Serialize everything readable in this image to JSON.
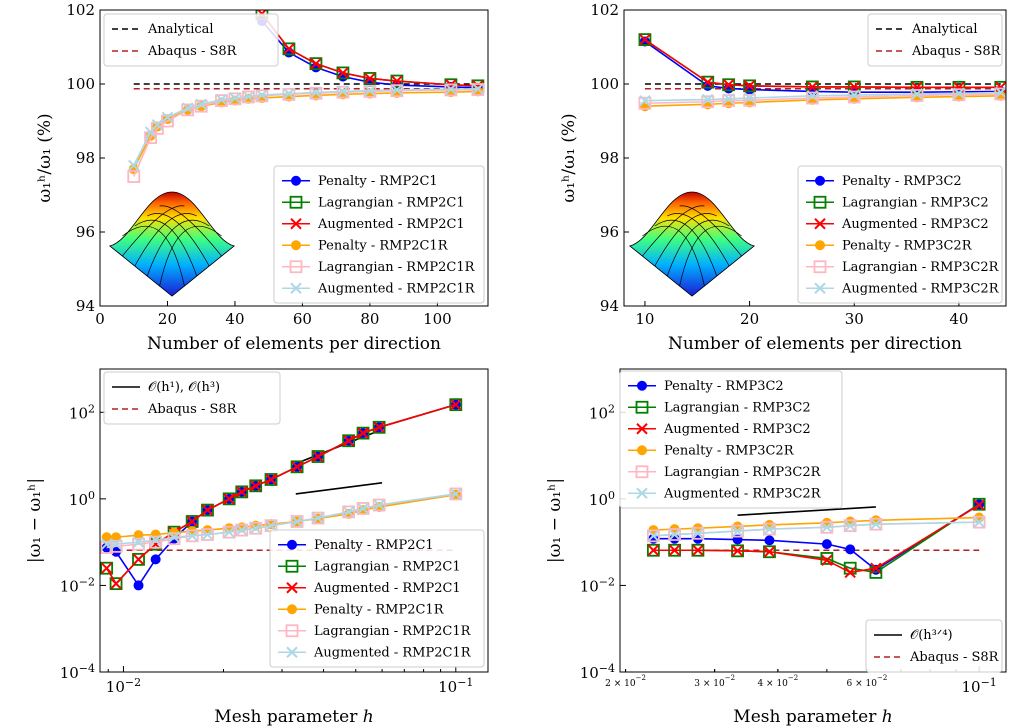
{
  "chart_data": [
    {
      "type": "line",
      "xlabel": "Number of elements per direction",
      "ylabel": "ω₁ʰ/ω₁ (%)",
      "xlim": [
        0,
        115
      ],
      "ylim": [
        94,
        102
      ],
      "xticks": [
        "0",
        "20",
        "40",
        "60",
        "80",
        "100"
      ],
      "yticks": [
        "94",
        "96",
        "98",
        "100",
        "102"
      ],
      "reference_lines": [
        {
          "name": "Analytical",
          "y": 100.0,
          "x_range": [
            10,
            112
          ],
          "color": "#000000"
        },
        {
          "name": "Abaqus - S8R",
          "y": 99.87,
          "x_range": [
            10,
            112
          ],
          "color": "#b22222"
        }
      ],
      "legend_top": [
        "Analytical",
        "Abaqus - S8R"
      ],
      "series": [
        {
          "name": "Penalty - RMP2C1",
          "color": "#0000ff",
          "marker": "circle",
          "x": [
            48,
            56,
            64,
            72,
            80,
            88,
            104,
            112
          ],
          "y": [
            101.7,
            100.85,
            100.45,
            100.2,
            100.05,
            99.97,
            99.92,
            99.9
          ]
        },
        {
          "name": "Lagrangian - RMP2C1",
          "color": "#008000",
          "marker": "square",
          "x": [
            48,
            56,
            64,
            72,
            80,
            88,
            104,
            112
          ],
          "y": [
            101.9,
            100.95,
            100.55,
            100.3,
            100.15,
            100.08,
            99.98,
            99.95
          ]
        },
        {
          "name": "Augmented - RMP2C1",
          "color": "#ff0000",
          "marker": "x",
          "x": [
            48,
            56,
            64,
            72,
            80,
            88,
            104,
            112
          ],
          "y": [
            101.9,
            100.95,
            100.55,
            100.3,
            100.15,
            100.08,
            99.98,
            99.95
          ]
        },
        {
          "name": "Penalty - RMP2C1R",
          "color": "#ffa500",
          "marker": "circle",
          "x": [
            10,
            15,
            17,
            20,
            26,
            30,
            36,
            40,
            44,
            48,
            56,
            64,
            72,
            80,
            88,
            104,
            112
          ],
          "y": [
            97.7,
            98.6,
            98.85,
            99.05,
            99.3,
            99.4,
            99.5,
            99.55,
            99.6,
            99.62,
            99.66,
            99.69,
            99.72,
            99.74,
            99.76,
            99.78,
            99.8
          ]
        },
        {
          "name": "Lagrangian - RMP2C1R",
          "color": "#ffb6c1",
          "marker": "square",
          "x": [
            10,
            15,
            17,
            20,
            26,
            30,
            36,
            40,
            44,
            48,
            56,
            64,
            72,
            80,
            88,
            104,
            112
          ],
          "y": [
            97.5,
            98.55,
            98.8,
            99.0,
            99.3,
            99.4,
            99.55,
            99.6,
            99.65,
            99.68,
            99.72,
            99.75,
            99.78,
            99.8,
            99.82,
            99.84,
            99.85
          ]
        },
        {
          "name": "Augmented - RMP2C1R",
          "color": "#add8e6",
          "marker": "x",
          "x": [
            10,
            15,
            17,
            20,
            26,
            30,
            36,
            40,
            44,
            48,
            56,
            64,
            72,
            80,
            88,
            104,
            112
          ],
          "y": [
            97.8,
            98.7,
            98.9,
            99.1,
            99.35,
            99.45,
            99.58,
            99.62,
            99.66,
            99.7,
            99.74,
            99.77,
            99.8,
            99.82,
            99.84,
            99.86,
            99.87
          ]
        }
      ]
    },
    {
      "type": "line",
      "xlabel": "Number of elements per direction",
      "ylabel": "ω₁ʰ/ω₁ (%)",
      "xlim": [
        8,
        44.5
      ],
      "ylim": [
        94,
        102
      ],
      "xticks": [
        "10",
        "20",
        "30",
        "40"
      ],
      "yticks": [
        "94",
        "96",
        "98",
        "100",
        "102"
      ],
      "reference_lines": [
        {
          "name": "Analytical",
          "y": 100.0,
          "x_range": [
            10,
            44
          ],
          "color": "#000000"
        },
        {
          "name": "Abaqus - S8R",
          "y": 99.87,
          "x_range": [
            10,
            44
          ],
          "color": "#b22222"
        }
      ],
      "legend_top": [
        "Analytical",
        "Abaqus - S8R"
      ],
      "series": [
        {
          "name": "Penalty - RMP3C2",
          "color": "#0000ff",
          "marker": "circle",
          "x": [
            10,
            16,
            18,
            20,
            26,
            30,
            36,
            40,
            44
          ],
          "y": [
            101.15,
            99.95,
            99.88,
            99.85,
            99.8,
            99.78,
            99.78,
            99.79,
            99.8
          ]
        },
        {
          "name": "Lagrangian - RMP3C2",
          "color": "#008000",
          "marker": "square",
          "x": [
            10,
            16,
            18,
            20,
            26,
            30,
            36,
            40,
            44
          ],
          "y": [
            101.2,
            100.05,
            99.98,
            99.95,
            99.92,
            99.92,
            99.91,
            99.91,
            99.91
          ]
        },
        {
          "name": "Augmented - RMP3C2",
          "color": "#ff0000",
          "marker": "x",
          "x": [
            10,
            16,
            18,
            20,
            26,
            30,
            36,
            40,
            44
          ],
          "y": [
            101.2,
            100.05,
            99.98,
            99.95,
            99.92,
            99.92,
            99.91,
            99.91,
            99.91
          ]
        },
        {
          "name": "Penalty - RMP3C2R",
          "color": "#ffa500",
          "marker": "circle",
          "x": [
            10,
            16,
            18,
            20,
            26,
            30,
            36,
            40,
            44
          ],
          "y": [
            99.4,
            99.45,
            99.48,
            99.5,
            99.57,
            99.6,
            99.64,
            99.66,
            99.68
          ]
        },
        {
          "name": "Lagrangian - RMP3C2R",
          "color": "#ffb6c1",
          "marker": "square",
          "x": [
            10,
            16,
            18,
            20,
            26,
            30,
            36,
            40,
            44
          ],
          "y": [
            99.48,
            99.52,
            99.55,
            99.56,
            99.62,
            99.65,
            99.69,
            99.71,
            99.73
          ]
        },
        {
          "name": "Augmented - RMP3C2R",
          "color": "#add8e6",
          "marker": "x",
          "x": [
            10,
            16,
            18,
            20,
            26,
            30,
            36,
            40,
            44
          ],
          "y": [
            99.55,
            99.58,
            99.6,
            99.62,
            99.68,
            99.7,
            99.73,
            99.75,
            99.77
          ]
        }
      ]
    },
    {
      "type": "line",
      "scale": "log-log",
      "xlabel": "Mesh parameter h",
      "ylabel": "|ω₁ − ω₁ʰ|",
      "xlim": [
        0.0085,
        0.125
      ],
      "ylim": [
        0.0001,
        1000
      ],
      "xticks": [
        {
          "value": 0.01,
          "base": "10",
          "exp": "−2"
        },
        {
          "value": 0.1,
          "base": "10",
          "exp": "−1"
        }
      ],
      "yticks": [
        {
          "value": 0.0001,
          "base": "10",
          "exp": "−4"
        },
        {
          "value": 0.01,
          "base": "10",
          "exp": "−2"
        },
        {
          "value": 1,
          "base": "10",
          "exp": "0"
        },
        {
          "value": 100,
          "base": "10",
          "exp": "2"
        }
      ],
      "reference_lines": [
        {
          "name": "Abaqus - S8R",
          "y": 0.065,
          "x_range": [
            0.0089,
            0.1
          ],
          "color": "#b22222"
        }
      ],
      "slope_lines": [
        {
          "name": "𝒪(h¹), 𝒪(h³)",
          "x": [
            0.033,
            0.06
          ],
          "y": [
            6.5,
            40
          ],
          "color": "#000000"
        },
        {
          "name": "𝒪(h¹), 𝒪(h³)",
          "x": [
            0.033,
            0.06
          ],
          "y": [
            1.3,
            2.35
          ],
          "color": "#000000"
        }
      ],
      "legend_top": [
        "𝒪(h¹), 𝒪(h³)",
        "Abaqus - S8R"
      ],
      "series": [
        {
          "name": "Penalty - RMP2C1",
          "color": "#0000ff",
          "marker": "circle",
          "x": [
            0.0089,
            0.0095,
            0.0111,
            0.0125,
            0.0142,
            0.0161,
            0.0179,
            0.0208,
            0.0227,
            0.025,
            0.0278,
            0.0333,
            0.0385,
            0.0476,
            0.0526,
            0.0588,
            0.1
          ],
          "y": [
            0.075,
            0.06,
            0.01,
            0.04,
            0.12,
            0.3,
            0.55,
            1.0,
            1.45,
            2.0,
            2.8,
            5.5,
            9.5,
            22,
            33,
            45,
            150
          ]
        },
        {
          "name": "Lagrangian - RMP2C1",
          "color": "#008000",
          "marker": "square",
          "x": [
            0.0089,
            0.0095,
            0.0111,
            0.0125,
            0.0142,
            0.0161,
            0.0179,
            0.0208,
            0.0227,
            0.025,
            0.0278,
            0.0333,
            0.0385,
            0.0476,
            0.0526,
            0.0588,
            0.1
          ],
          "y": [
            0.025,
            0.011,
            0.04,
            0.09,
            0.17,
            0.3,
            0.55,
            1.0,
            1.45,
            2.0,
            2.8,
            5.5,
            9.5,
            22,
            33,
            45,
            150
          ]
        },
        {
          "name": "Augmented - RMP2C1",
          "color": "#ff0000",
          "marker": "x",
          "x": [
            0.0089,
            0.0095,
            0.0111,
            0.0125,
            0.0142,
            0.0161,
            0.0179,
            0.0208,
            0.0227,
            0.025,
            0.0278,
            0.0333,
            0.0385,
            0.0476,
            0.0526,
            0.0588,
            0.1
          ],
          "y": [
            0.025,
            0.011,
            0.04,
            0.09,
            0.17,
            0.3,
            0.55,
            1.0,
            1.45,
            2.0,
            2.8,
            5.5,
            9.5,
            22,
            33,
            45,
            150
          ]
        },
        {
          "name": "Penalty - RMP2C1R",
          "color": "#ffa500",
          "marker": "circle",
          "x": [
            0.0089,
            0.0095,
            0.0111,
            0.0125,
            0.0142,
            0.0161,
            0.0179,
            0.0208,
            0.0227,
            0.025,
            0.0278,
            0.0333,
            0.0385,
            0.0476,
            0.0526,
            0.0588,
            0.1
          ],
          "y": [
            0.13,
            0.13,
            0.145,
            0.15,
            0.165,
            0.18,
            0.19,
            0.21,
            0.22,
            0.24,
            0.26,
            0.3,
            0.35,
            0.45,
            0.55,
            0.65,
            1.25
          ]
        },
        {
          "name": "Lagrangian - RMP2C1R",
          "color": "#ffb6c1",
          "marker": "square",
          "x": [
            0.0089,
            0.0095,
            0.0111,
            0.0125,
            0.0142,
            0.0161,
            0.0179,
            0.0208,
            0.0227,
            0.025,
            0.0278,
            0.0333,
            0.0385,
            0.0476,
            0.0526,
            0.0588,
            0.1
          ],
          "y": [
            0.075,
            0.08,
            0.09,
            0.1,
            0.12,
            0.14,
            0.15,
            0.17,
            0.19,
            0.21,
            0.24,
            0.3,
            0.36,
            0.5,
            0.6,
            0.72,
            1.3
          ]
        },
        {
          "name": "Augmented - RMP2C1R",
          "color": "#add8e6",
          "marker": "x",
          "x": [
            0.0089,
            0.0095,
            0.0111,
            0.0125,
            0.0142,
            0.0161,
            0.0179,
            0.0208,
            0.0227,
            0.025,
            0.0278,
            0.0333,
            0.0385,
            0.0476,
            0.0526,
            0.0588,
            0.1
          ],
          "y": [
            0.09,
            0.09,
            0.1,
            0.11,
            0.13,
            0.14,
            0.15,
            0.17,
            0.19,
            0.21,
            0.24,
            0.3,
            0.36,
            0.5,
            0.6,
            0.72,
            1.3
          ]
        }
      ]
    },
    {
      "type": "line",
      "scale": "log-log",
      "xlabel": "Mesh parameter h",
      "ylabel": "|ω₁ − ω₁ʰ|",
      "xlim": [
        0.0195,
        0.113
      ],
      "ylim": [
        0.0001,
        1000
      ],
      "xticks": [
        {
          "value": 0.1,
          "base": "10",
          "exp": "−1"
        }
      ],
      "xticks_minor": [
        {
          "value": 0.02,
          "base": "2 × 10",
          "exp": "−2"
        },
        {
          "value": 0.03,
          "base": "3 × 10",
          "exp": "−2"
        },
        {
          "value": 0.04,
          "base": "4 × 10",
          "exp": "−2"
        },
        {
          "value": 0.06,
          "base": "6 × 10",
          "exp": "−2"
        }
      ],
      "yticks": [
        {
          "value": 0.0001,
          "base": "10",
          "exp": "−4"
        },
        {
          "value": 0.01,
          "base": "10",
          "exp": "−2"
        },
        {
          "value": 1,
          "base": "10",
          "exp": "0"
        },
        {
          "value": 100,
          "base": "10",
          "exp": "2"
        }
      ],
      "reference_lines": [
        {
          "name": "Abaqus - S8R",
          "y": 0.065,
          "x_range": [
            0.0227,
            0.1
          ],
          "color": "#b22222"
        }
      ],
      "slope_lines": [
        {
          "name": "𝒪(h³ᐟ⁴)",
          "x": [
            0.0333,
            0.0625
          ],
          "y": [
            0.42,
            0.65
          ],
          "color": "#000000"
        }
      ],
      "legend_bottom": [
        "𝒪(h³ᐟ⁴)",
        "Abaqus - S8R"
      ],
      "series": [
        {
          "name": "Penalty - RMP3C2",
          "color": "#0000ff",
          "marker": "circle",
          "x": [
            0.0227,
            0.025,
            0.0278,
            0.0333,
            0.0385,
            0.05,
            0.0556,
            0.0625,
            0.1
          ],
          "y": [
            0.12,
            0.12,
            0.12,
            0.115,
            0.11,
            0.09,
            0.068,
            0.023,
            0.75
          ]
        },
        {
          "name": "Lagrangian - RMP3C2",
          "color": "#008000",
          "marker": "square",
          "x": [
            0.0227,
            0.025,
            0.0278,
            0.0333,
            0.0385,
            0.05,
            0.0556,
            0.0625,
            0.1
          ],
          "y": [
            0.065,
            0.065,
            0.065,
            0.063,
            0.06,
            0.042,
            0.025,
            0.02,
            0.75
          ]
        },
        {
          "name": "Augmented - RMP3C2",
          "color": "#ff0000",
          "marker": "x",
          "x": [
            0.0227,
            0.025,
            0.0278,
            0.0333,
            0.0385,
            0.05,
            0.0556,
            0.0625,
            0.1
          ],
          "y": [
            0.065,
            0.065,
            0.065,
            0.063,
            0.06,
            0.038,
            0.02,
            0.025,
            0.72
          ]
        },
        {
          "name": "Penalty - RMP3C2R",
          "color": "#ffa500",
          "marker": "circle",
          "x": [
            0.0227,
            0.025,
            0.0278,
            0.0333,
            0.0385,
            0.05,
            0.0556,
            0.0625,
            0.1
          ],
          "y": [
            0.19,
            0.2,
            0.21,
            0.23,
            0.25,
            0.28,
            0.3,
            0.32,
            0.37
          ]
        },
        {
          "name": "Lagrangian - RMP3C2R",
          "color": "#ffb6c1",
          "marker": "square",
          "x": [
            0.0227,
            0.025,
            0.0278,
            0.0333,
            0.0385,
            0.05,
            0.0556,
            0.0625,
            0.1
          ],
          "y": [
            0.14,
            0.15,
            0.16,
            0.18,
            0.2,
            0.22,
            0.24,
            0.26,
            0.29
          ]
        },
        {
          "name": "Augmented - RMP3C2R",
          "color": "#add8e6",
          "marker": "x",
          "x": [
            0.0227,
            0.025,
            0.0278,
            0.0333,
            0.0385,
            0.05,
            0.0556,
            0.0625,
            0.1
          ],
          "y": [
            0.14,
            0.15,
            0.16,
            0.18,
            0.2,
            0.22,
            0.24,
            0.26,
            0.29
          ]
        }
      ]
    }
  ]
}
